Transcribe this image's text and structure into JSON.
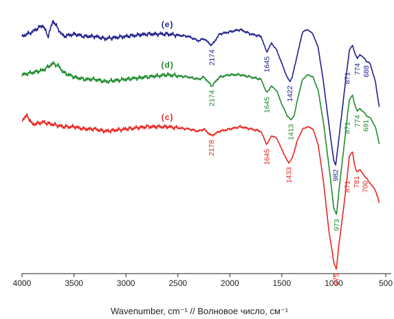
{
  "chart_data": {
    "type": "line",
    "title": "",
    "xlabel": "Wavenumber, cm⁻¹ // Волновое число, см⁻¹",
    "ylabel": "",
    "xlim": [
      4000,
      500
    ],
    "x_reversed": true,
    "x_ticks": [
      4000,
      3500,
      3000,
      2500,
      2000,
      1500,
      1000,
      500
    ],
    "x_tick_labels": [
      "4000",
      "3500",
      "3000",
      "2500",
      "2000",
      "1500",
      "1000",
      "500"
    ],
    "grid": false,
    "y_axis_shown": false,
    "series": [
      {
        "name": "(e)",
        "color": "#1f1f8c",
        "points": [
          [
            4000,
            0.9
          ],
          [
            3900,
            0.92
          ],
          [
            3800,
            0.95
          ],
          [
            3750,
            0.9
          ],
          [
            3700,
            0.97
          ],
          [
            3650,
            0.93
          ],
          [
            3600,
            0.9
          ],
          [
            3500,
            0.91
          ],
          [
            3400,
            0.9
          ],
          [
            3300,
            0.9
          ],
          [
            3200,
            0.89
          ],
          [
            3000,
            0.9
          ],
          [
            2800,
            0.91
          ],
          [
            2600,
            0.91
          ],
          [
            2400,
            0.9
          ],
          [
            2300,
            0.88
          ],
          [
            2250,
            0.89
          ],
          [
            2174,
            0.86
          ],
          [
            2100,
            0.91
          ],
          [
            2000,
            0.92
          ],
          [
            1900,
            0.93
          ],
          [
            1800,
            0.91
          ],
          [
            1700,
            0.9
          ],
          [
            1645,
            0.83
          ],
          [
            1600,
            0.87
          ],
          [
            1550,
            0.84
          ],
          [
            1500,
            0.78
          ],
          [
            1450,
            0.72
          ],
          [
            1422,
            0.7
          ],
          [
            1400,
            0.72
          ],
          [
            1350,
            0.82
          ],
          [
            1300,
            0.92
          ],
          [
            1250,
            0.93
          ],
          [
            1200,
            0.91
          ],
          [
            1150,
            0.85
          ],
          [
            1100,
            0.7
          ],
          [
            1050,
            0.52
          ],
          [
            1000,
            0.35
          ],
          [
            982,
            0.33
          ],
          [
            950,
            0.45
          ],
          [
            900,
            0.65
          ],
          [
            871,
            0.76
          ],
          [
            850,
            0.84
          ],
          [
            820,
            0.86
          ],
          [
            800,
            0.83
          ],
          [
            774,
            0.8
          ],
          [
            750,
            0.82
          ],
          [
            700,
            0.8
          ],
          [
            688,
            0.79
          ],
          [
            650,
            0.78
          ],
          [
            600,
            0.7
          ],
          [
            560,
            0.58
          ]
        ]
      },
      {
        "name": "(d)",
        "color": "#1e8a2c",
        "points": [
          [
            4000,
            0.73
          ],
          [
            3900,
            0.74
          ],
          [
            3800,
            0.75
          ],
          [
            3700,
            0.78
          ],
          [
            3650,
            0.77
          ],
          [
            3600,
            0.74
          ],
          [
            3500,
            0.72
          ],
          [
            3400,
            0.71
          ],
          [
            3300,
            0.71
          ],
          [
            3200,
            0.7
          ],
          [
            3000,
            0.71
          ],
          [
            2800,
            0.72
          ],
          [
            2600,
            0.73
          ],
          [
            2400,
            0.72
          ],
          [
            2300,
            0.71
          ],
          [
            2250,
            0.72
          ],
          [
            2174,
            0.68
          ],
          [
            2100,
            0.72
          ],
          [
            2000,
            0.73
          ],
          [
            1900,
            0.73
          ],
          [
            1800,
            0.72
          ],
          [
            1700,
            0.71
          ],
          [
            1645,
            0.65
          ],
          [
            1600,
            0.68
          ],
          [
            1550,
            0.66
          ],
          [
            1500,
            0.6
          ],
          [
            1450,
            0.55
          ],
          [
            1413,
            0.53
          ],
          [
            1380,
            0.55
          ],
          [
            1350,
            0.62
          ],
          [
            1300,
            0.71
          ],
          [
            1250,
            0.73
          ],
          [
            1200,
            0.72
          ],
          [
            1150,
            0.66
          ],
          [
            1100,
            0.52
          ],
          [
            1050,
            0.34
          ],
          [
            1000,
            0.14
          ],
          [
            973,
            0.11
          ],
          [
            950,
            0.22
          ],
          [
            900,
            0.42
          ],
          [
            871,
            0.54
          ],
          [
            850,
            0.62
          ],
          [
            820,
            0.64
          ],
          [
            800,
            0.6
          ],
          [
            774,
            0.57
          ],
          [
            750,
            0.58
          ],
          [
            700,
            0.56
          ],
          [
            691,
            0.55
          ],
          [
            650,
            0.54
          ],
          [
            600,
            0.5
          ],
          [
            560,
            0.42
          ]
        ]
      },
      {
        "name": "(c)",
        "color": "#e8261f",
        "points": [
          [
            4000,
            0.53
          ],
          [
            3950,
            0.55
          ],
          [
            3900,
            0.51
          ],
          [
            3800,
            0.52
          ],
          [
            3700,
            0.51
          ],
          [
            3600,
            0.5
          ],
          [
            3500,
            0.5
          ],
          [
            3400,
            0.49
          ],
          [
            3300,
            0.49
          ],
          [
            3200,
            0.48
          ],
          [
            3000,
            0.49
          ],
          [
            2800,
            0.5
          ],
          [
            2600,
            0.5
          ],
          [
            2400,
            0.49
          ],
          [
            2300,
            0.48
          ],
          [
            2250,
            0.49
          ],
          [
            2178,
            0.46
          ],
          [
            2100,
            0.48
          ],
          [
            2000,
            0.49
          ],
          [
            1900,
            0.5
          ],
          [
            1800,
            0.49
          ],
          [
            1700,
            0.48
          ],
          [
            1645,
            0.42
          ],
          [
            1600,
            0.46
          ],
          [
            1550,
            0.45
          ],
          [
            1500,
            0.4
          ],
          [
            1460,
            0.36
          ],
          [
            1433,
            0.34
          ],
          [
            1400,
            0.36
          ],
          [
            1350,
            0.44
          ],
          [
            1300,
            0.49
          ],
          [
            1250,
            0.5
          ],
          [
            1200,
            0.49
          ],
          [
            1150,
            0.42
          ],
          [
            1100,
            0.26
          ],
          [
            1050,
            0.05
          ],
          [
            1000,
            -0.1
          ],
          [
            975,
            -0.13
          ],
          [
            950,
            -0.02
          ],
          [
            900,
            0.16
          ],
          [
            871,
            0.28
          ],
          [
            850,
            0.37
          ],
          [
            820,
            0.39
          ],
          [
            800,
            0.33
          ],
          [
            781,
            0.3
          ],
          [
            750,
            0.31
          ],
          [
            700,
            0.28
          ],
          [
            650,
            0.25
          ],
          [
            600,
            0.22
          ],
          [
            560,
            0.16
          ]
        ]
      }
    ],
    "series_labels": [
      "(e)",
      "(d)",
      "(c)"
    ],
    "annotations": [
      {
        "series": "(e)",
        "text": "2174"
      },
      {
        "series": "(e)",
        "text": "1645"
      },
      {
        "series": "(e)",
        "text": "1422"
      },
      {
        "series": "(e)",
        "text": "982"
      },
      {
        "series": "(e)",
        "text": "871"
      },
      {
        "series": "(e)",
        "text": "774"
      },
      {
        "series": "(e)",
        "text": "688"
      },
      {
        "series": "(d)",
        "text": "2174"
      },
      {
        "series": "(d)",
        "text": "1645"
      },
      {
        "series": "(d)",
        "text": "1413"
      },
      {
        "series": "(d)",
        "text": "973"
      },
      {
        "series": "(d)",
        "text": "871"
      },
      {
        "series": "(d)",
        "text": "774"
      },
      {
        "series": "(d)",
        "text": "691"
      },
      {
        "series": "(c)",
        "text": "2178"
      },
      {
        "series": "(c)",
        "text": "1645"
      },
      {
        "series": "(c)",
        "text": "1433"
      },
      {
        "series": "(c)",
        "text": "975"
      },
      {
        "series": "(c)",
        "text": "871"
      },
      {
        "series": "(c)",
        "text": "781"
      },
      {
        "series": "(c)",
        "text": "700"
      }
    ]
  }
}
